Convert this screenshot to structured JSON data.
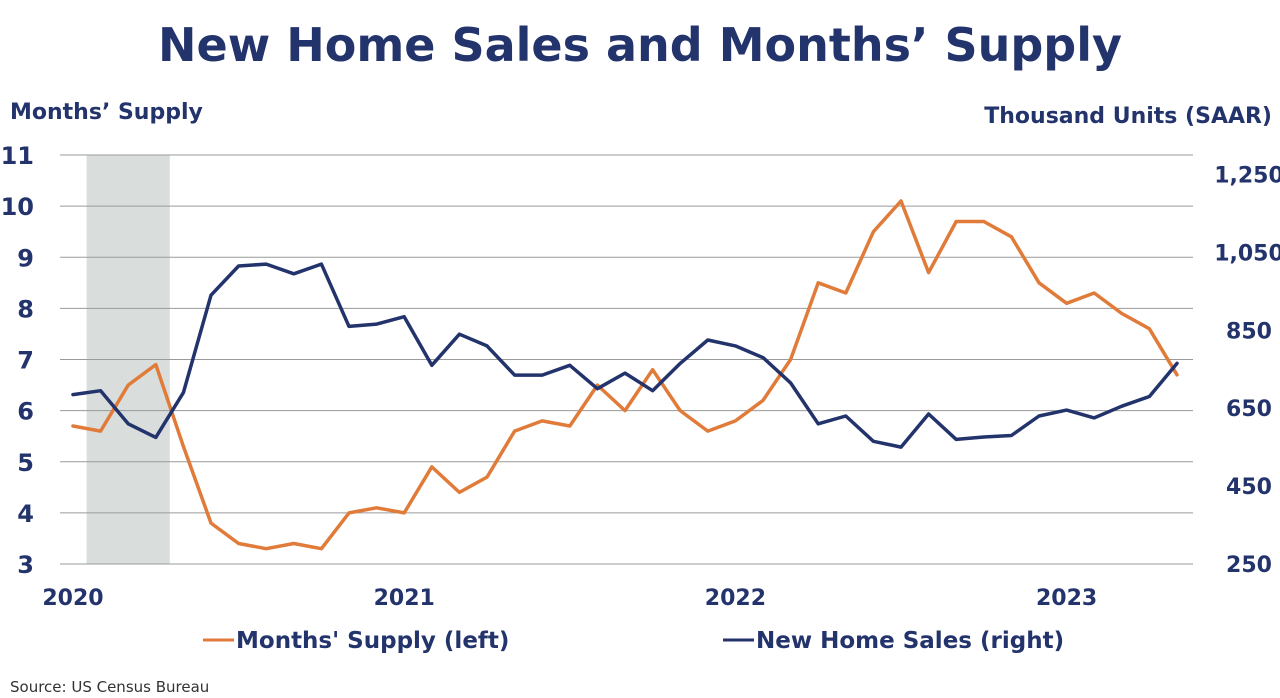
{
  "chart_data": {
    "type": "line",
    "title": "New Home Sales and Months’ Supply",
    "y_left_label": "Months’ Supply",
    "y_right_label": "Thousand Units (SAAR)",
    "y_left_range": [
      3,
      11
    ],
    "y_left_ticks": [
      "3",
      "4",
      "5",
      "6",
      "7",
      "8",
      "9",
      "10",
      "11"
    ],
    "y_right_range": [
      250,
      1300
    ],
    "y_right_ticks": [
      "250",
      "450",
      "650",
      "850",
      "1,050",
      "1,250"
    ],
    "x_start": "2020-01",
    "x_ticks": [
      "2020",
      "2021",
      "2022",
      "2023"
    ],
    "grid": "horizontal",
    "recession_shading": {
      "from": "2020-02",
      "to": "2020-04",
      "color": "#d9dedc"
    },
    "legend_position": "bottom",
    "source": "Source:  US Census Bureau",
    "series": [
      {
        "name": "Months' Supply (left)",
        "axis": "left",
        "color": "#e07b39",
        "values": [
          5.7,
          5.6,
          6.5,
          6.9,
          5.3,
          3.8,
          3.4,
          3.3,
          3.4,
          3.3,
          4.0,
          4.1,
          4.0,
          4.9,
          4.4,
          4.7,
          5.6,
          5.8,
          5.7,
          6.5,
          6.0,
          6.8,
          6.0,
          5.6,
          5.8,
          6.2,
          7.0,
          8.5,
          8.3,
          9.5,
          10.1,
          8.7,
          9.7,
          9.7,
          9.4,
          8.5,
          8.1,
          8.3,
          7.9,
          7.6,
          6.7
        ]
      },
      {
        "name": "New Home Sales (right)",
        "axis": "right",
        "color": "#23336b",
        "values": [
          685,
          695,
          610,
          575,
          690,
          940,
          1015,
          1020,
          995,
          1020,
          860,
          866,
          885,
          760,
          840,
          810,
          735,
          735,
          760,
          700,
          740,
          695,
          765,
          825,
          810,
          780,
          715,
          610,
          630,
          565,
          550,
          635,
          570,
          576,
          580,
          630,
          645,
          625,
          655,
          680,
          765
        ]
      }
    ]
  }
}
